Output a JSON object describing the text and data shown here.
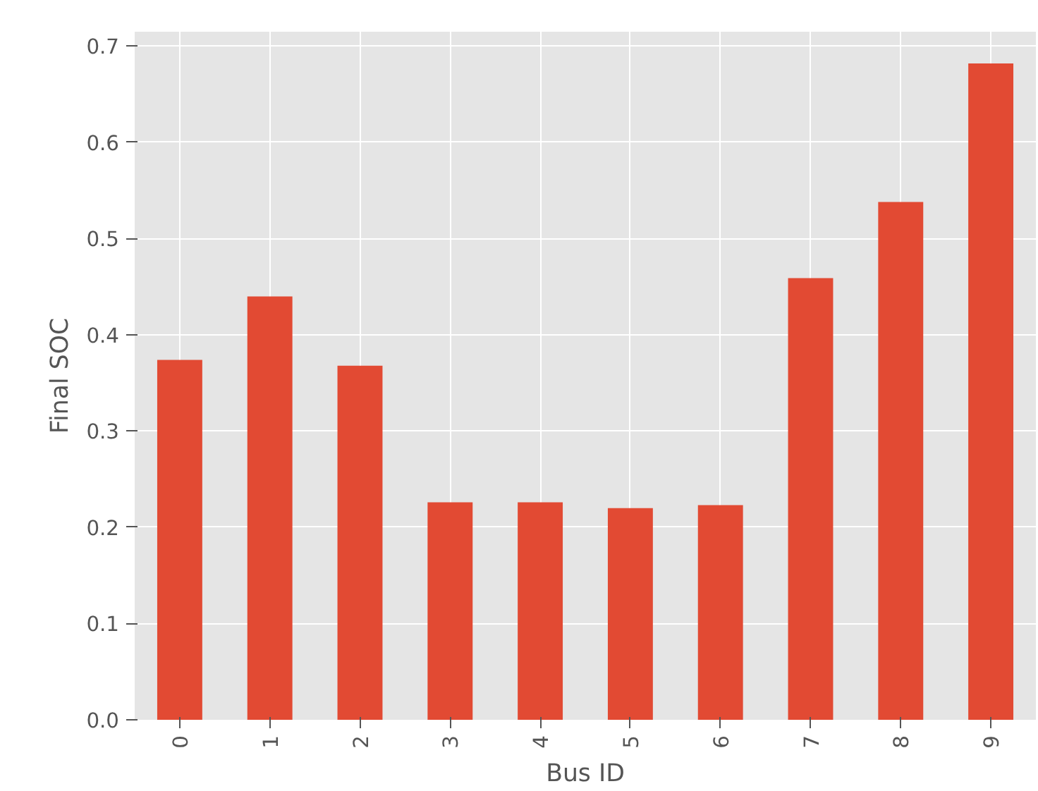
{
  "chart_data": {
    "type": "bar",
    "xlabel": "Bus ID",
    "ylabel": "Final SOC",
    "categories": [
      "0",
      "1",
      "2",
      "3",
      "4",
      "5",
      "6",
      "7",
      "8",
      "9"
    ],
    "values": [
      0.374,
      0.44,
      0.368,
      0.226,
      0.226,
      0.22,
      0.223,
      0.459,
      0.538,
      0.682
    ],
    "color": "#e24a33",
    "ylim": [
      0,
      0.715
    ],
    "yticks": [
      {
        "value": 0,
        "label": "0.0"
      },
      {
        "value": 0.1,
        "label": "0.1"
      },
      {
        "value": 0.2,
        "label": "0.2"
      },
      {
        "value": 0.3,
        "label": "0.3"
      },
      {
        "value": 0.4,
        "label": "0.4"
      },
      {
        "value": 0.5,
        "label": "0.5"
      },
      {
        "value": 0.6,
        "label": "0.6"
      },
      {
        "value": 0.7,
        "label": "0.7"
      }
    ],
    "grid": true
  }
}
